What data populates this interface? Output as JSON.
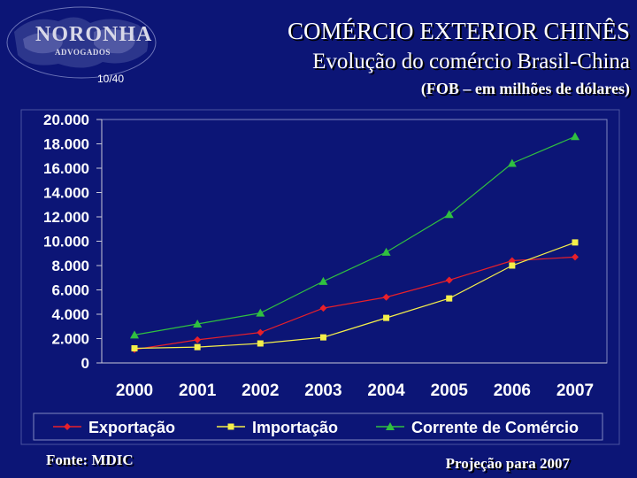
{
  "logo": {
    "name": "NORONHA",
    "subtitle": "ADVOGADOS"
  },
  "slide_number": "10/40",
  "title": {
    "line1": "COMÉRCIO EXTERIOR CHINÊS",
    "line2": "Evolução do comércio Brasil-China"
  },
  "subtitle": "(FOB – em milhões de dólares)",
  "footer": {
    "source": "Fonte: MDIC",
    "note": "Projeção para 2007"
  },
  "colors": {
    "background": "#0c1576",
    "exportacao": "#e8202a",
    "importacao": "#f5ef4a",
    "corrente": "#30c040"
  },
  "chart_data": {
    "type": "line",
    "title": "",
    "xlabel": "",
    "ylabel": "",
    "categories": [
      "2000",
      "2001",
      "2002",
      "2003",
      "2004",
      "2005",
      "2006",
      "2007"
    ],
    "ylim": [
      0,
      20000
    ],
    "yticks": [
      0,
      2000,
      4000,
      6000,
      8000,
      10000,
      12000,
      14000,
      16000,
      18000,
      20000
    ],
    "ytick_labels": [
      "0",
      "2.000",
      "4.000",
      "6.000",
      "8.000",
      "10.000",
      "12.000",
      "14.000",
      "16.000",
      "18.000",
      "20.000"
    ],
    "grid": false,
    "legend_position": "bottom",
    "series": [
      {
        "name": "Exportação",
        "marker": "diamond",
        "values": [
          1100,
          1900,
          2500,
          4500,
          5400,
          6800,
          8400,
          8700
        ]
      },
      {
        "name": "Importação",
        "marker": "square",
        "values": [
          1200,
          1300,
          1600,
          2100,
          3700,
          5300,
          8000,
          9900
        ]
      },
      {
        "name": "Corrente de Comércio",
        "marker": "triangle",
        "values": [
          2300,
          3200,
          4100,
          6700,
          9100,
          12200,
          16400,
          18600
        ]
      }
    ]
  }
}
